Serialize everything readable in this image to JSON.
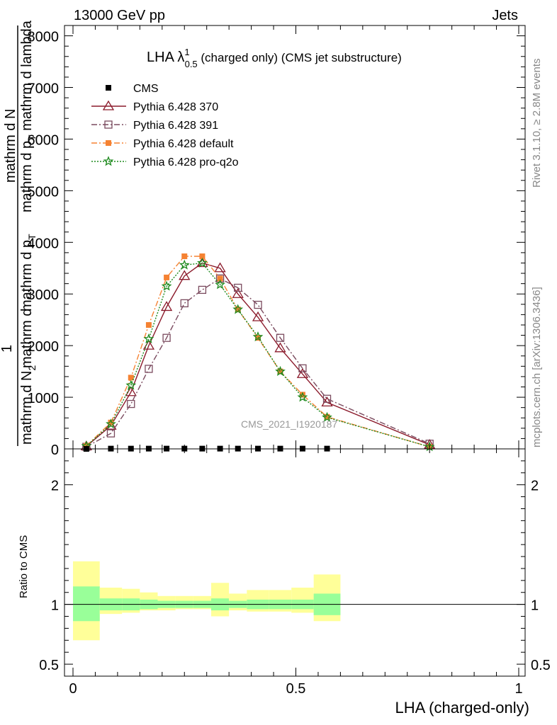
{
  "header": {
    "left": "13000 GeV pp",
    "right": "Jets"
  },
  "side_labels": {
    "rivet": "Rivet 3.1.10, ≥ 2.8M events",
    "mcplots": "mcplots.cern.ch [arXiv:1306.3436]"
  },
  "watermark": "CMS_2021_I1920187",
  "main_title": {
    "prefix": "LHA λ",
    "sup": "1",
    "sub": "0.5",
    "suffix": " (charged only) (CMS jet substructure)"
  },
  "ylabel_main": {
    "one": "1",
    "denominator": "mathrm d N/ mathrm d p_{T}",
    "line1": "mathrm d N",
    "line2": "mathrm d p",
    "line2_sub": "T",
    "line2_suffix": " mathrm d lambda",
    "overlap1": "mathrm d p",
    "overlap1_sub": "T",
    "overlap2": "mathrm d",
    "overlap3": "mathrm d N",
    "overlap3_sub": "2"
  },
  "ylabel_ratio": "Ratio to CMS",
  "xlabel": "LHA (charged-only)",
  "legend": [
    {
      "name": "CMS",
      "color": "#000000",
      "marker": "filled-square",
      "line": "none"
    },
    {
      "name": "Pythia 6.428 370",
      "color": "#8b1a2b",
      "marker": "open-triangle",
      "line": "solid"
    },
    {
      "name": "Pythia 6.428 391",
      "color": "#7a4a5e",
      "marker": "open-square",
      "line": "dashdot"
    },
    {
      "name": "Pythia 6.428 default",
      "color": "#f58232",
      "marker": "filled-square",
      "line": "dashdot"
    },
    {
      "name": "Pythia 6.428 pro-q2o",
      "color": "#1e8a1e",
      "marker": "star",
      "line": "dotted"
    }
  ],
  "chart_data": {
    "type": "line",
    "title": "LHA λ^1_0.5 (charged only) (CMS jet substructure)",
    "xlabel": "LHA (charged-only)",
    "xlim": [
      0,
      1
    ],
    "xticks": [
      0,
      0.5,
      1
    ],
    "xtick_labels": [
      "0",
      "0.5",
      "1"
    ],
    "main_ylim": [
      0,
      8200
    ],
    "main_yticks": [
      0,
      1000,
      2000,
      3000,
      4000,
      5000,
      6000,
      7000,
      8000
    ],
    "main_ytick_labels": [
      "0",
      "1000",
      "2000",
      "3000",
      "4000",
      "5000",
      "6000",
      "7000",
      "8000"
    ],
    "ratio_ylim": [
      0.4,
      2.3
    ],
    "ratio_yticks": [
      0.5,
      1,
      2
    ],
    "ratio_ytick_labels": [
      "0.5",
      "1",
      "2"
    ],
    "bin_edges": [
      0,
      0.06,
      0.11,
      0.15,
      0.19,
      0.23,
      0.27,
      0.31,
      0.35,
      0.39,
      0.44,
      0.49,
      0.54,
      0.6,
      1.0
    ],
    "cms": {
      "x": [
        0.03,
        0.085,
        0.13,
        0.17,
        0.21,
        0.25,
        0.29,
        0.33,
        0.37,
        0.415,
        0.465,
        0.515,
        0.57
      ],
      "y": [
        0,
        5,
        5,
        5,
        5,
        5,
        5,
        5,
        5,
        5,
        5,
        5,
        5
      ]
    },
    "series": [
      {
        "name": "Pythia 6.428 370",
        "x": [
          0.03,
          0.085,
          0.13,
          0.17,
          0.21,
          0.25,
          0.29,
          0.33,
          0.37,
          0.415,
          0.465,
          0.515,
          0.57,
          0.8
        ],
        "y": [
          50,
          450,
          1100,
          2000,
          2750,
          3350,
          3600,
          3500,
          3000,
          2550,
          1950,
          1450,
          900,
          80
        ]
      },
      {
        "name": "Pythia 6.428 391",
        "x": [
          0.03,
          0.085,
          0.13,
          0.17,
          0.21,
          0.25,
          0.29,
          0.33,
          0.37,
          0.415,
          0.465,
          0.515,
          0.57,
          0.8
        ],
        "y": [
          40,
          300,
          870,
          1550,
          2150,
          2820,
          3080,
          3300,
          3120,
          2790,
          2150,
          1560,
          970,
          100
        ]
      },
      {
        "name": "Pythia 6.428 default",
        "x": [
          0.03,
          0.085,
          0.13,
          0.17,
          0.21,
          0.25,
          0.29,
          0.33,
          0.37,
          0.415,
          0.465,
          0.515,
          0.57,
          0.8
        ],
        "y": [
          60,
          510,
          1380,
          2400,
          3320,
          3730,
          3730,
          3300,
          2700,
          2150,
          1500,
          1050,
          620,
          40
        ]
      },
      {
        "name": "Pythia 6.428 pro-q2o",
        "x": [
          0.03,
          0.085,
          0.13,
          0.17,
          0.21,
          0.25,
          0.29,
          0.33,
          0.37,
          0.415,
          0.465,
          0.515,
          0.57,
          0.8
        ],
        "y": [
          55,
          480,
          1230,
          2130,
          3150,
          3560,
          3600,
          3180,
          2700,
          2170,
          1500,
          1000,
          610,
          40
        ]
      }
    ],
    "ratio_bands": {
      "inner_color": "#99ff99",
      "outer_color": "#ffff99",
      "inner_low": [
        0.86,
        0.95,
        0.95,
        0.96,
        0.97,
        0.97,
        0.97,
        0.95,
        0.97,
        0.96,
        0.96,
        0.96,
        0.91
      ],
      "inner_high": [
        1.15,
        1.05,
        1.05,
        1.04,
        1.03,
        1.03,
        1.03,
        1.05,
        1.03,
        1.04,
        1.04,
        1.04,
        1.09
      ],
      "outer_low": [
        0.7,
        0.92,
        0.93,
        0.95,
        0.95,
        0.96,
        0.96,
        0.9,
        0.95,
        0.94,
        0.94,
        0.93,
        0.86
      ],
      "outer_high": [
        1.36,
        1.14,
        1.13,
        1.1,
        1.07,
        1.07,
        1.07,
        1.18,
        1.09,
        1.12,
        1.12,
        1.14,
        1.25
      ]
    }
  }
}
